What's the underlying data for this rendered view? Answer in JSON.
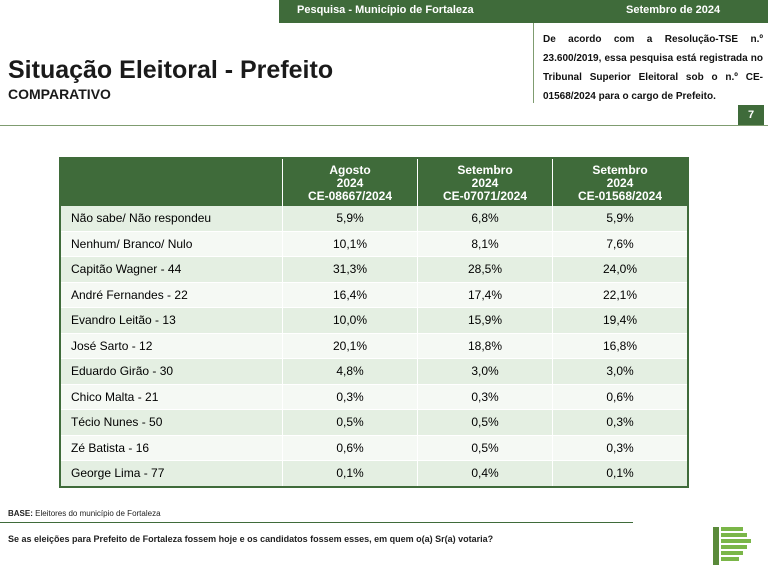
{
  "header": {
    "left": "Pesquisa - Município de Fortaleza",
    "right": "Setembro de 2024"
  },
  "title": "Situação Eleitoral - Prefeito",
  "subtitle": "COMPARATIVO",
  "tse_note": "De acordo com a Resolução-TSE n.º 23.600/2019, essa pesquisa está registrada no Tribunal Superior Eleitoral sob o n.º CE-01568/2024 para o cargo de Prefeito.",
  "page_number": "7",
  "table": {
    "columns": [
      {
        "line1": "Agosto",
        "line2": "2024",
        "line3": "CE-08667/2024"
      },
      {
        "line1": "Setembro",
        "line2": "2024",
        "line3": "CE-07071/2024"
      },
      {
        "line1": "Setembro",
        "line2": "2024",
        "line3": "CE-01568/2024"
      }
    ],
    "rows": [
      {
        "label": "Não sabe/ Não respondeu",
        "values": [
          "5,9%",
          "6,8%",
          "5,9%"
        ]
      },
      {
        "label": "Nenhum/ Branco/ Nulo",
        "values": [
          "10,1%",
          "8,1%",
          "7,6%"
        ]
      },
      {
        "label": "Capitão Wagner - 44",
        "values": [
          "31,3%",
          "28,5%",
          "24,0%"
        ]
      },
      {
        "label": "André Fernandes - 22",
        "values": [
          "16,4%",
          "17,4%",
          "22,1%"
        ]
      },
      {
        "label": "Evandro Leitão - 13",
        "values": [
          "10,0%",
          "15,9%",
          "19,4%"
        ]
      },
      {
        "label": "José Sarto - 12",
        "values": [
          "20,1%",
          "18,8%",
          "16,8%"
        ]
      },
      {
        "label": "Eduardo Girão - 30",
        "values": [
          "4,8%",
          "3,0%",
          "3,0%"
        ]
      },
      {
        "label": "Chico Malta - 21",
        "values": [
          "0,3%",
          "0,3%",
          "0,6%"
        ]
      },
      {
        "label": "Técio Nunes - 50",
        "values": [
          "0,5%",
          "0,5%",
          "0,3%"
        ]
      },
      {
        "label": "Zé Batista - 16",
        "values": [
          "0,6%",
          "0,5%",
          "0,3%"
        ]
      },
      {
        "label": "George Lima - 77",
        "values": [
          "0,1%",
          "0,4%",
          "0,1%"
        ]
      }
    ]
  },
  "base": {
    "label": "BASE:",
    "text": "Eleitores do município de Fortaleza"
  },
  "question": "Se as eleições para Prefeito de Fortaleza fossem hoje e os candidatos fossem esses, em quem o(a) Sr(a) votaria?",
  "colors": {
    "brand_green": "#3f6b3a",
    "row_light": "#e4efe2",
    "row_lighter": "#f5f9f4"
  },
  "logo": {
    "icon": "bar-stack-logo-icon"
  }
}
